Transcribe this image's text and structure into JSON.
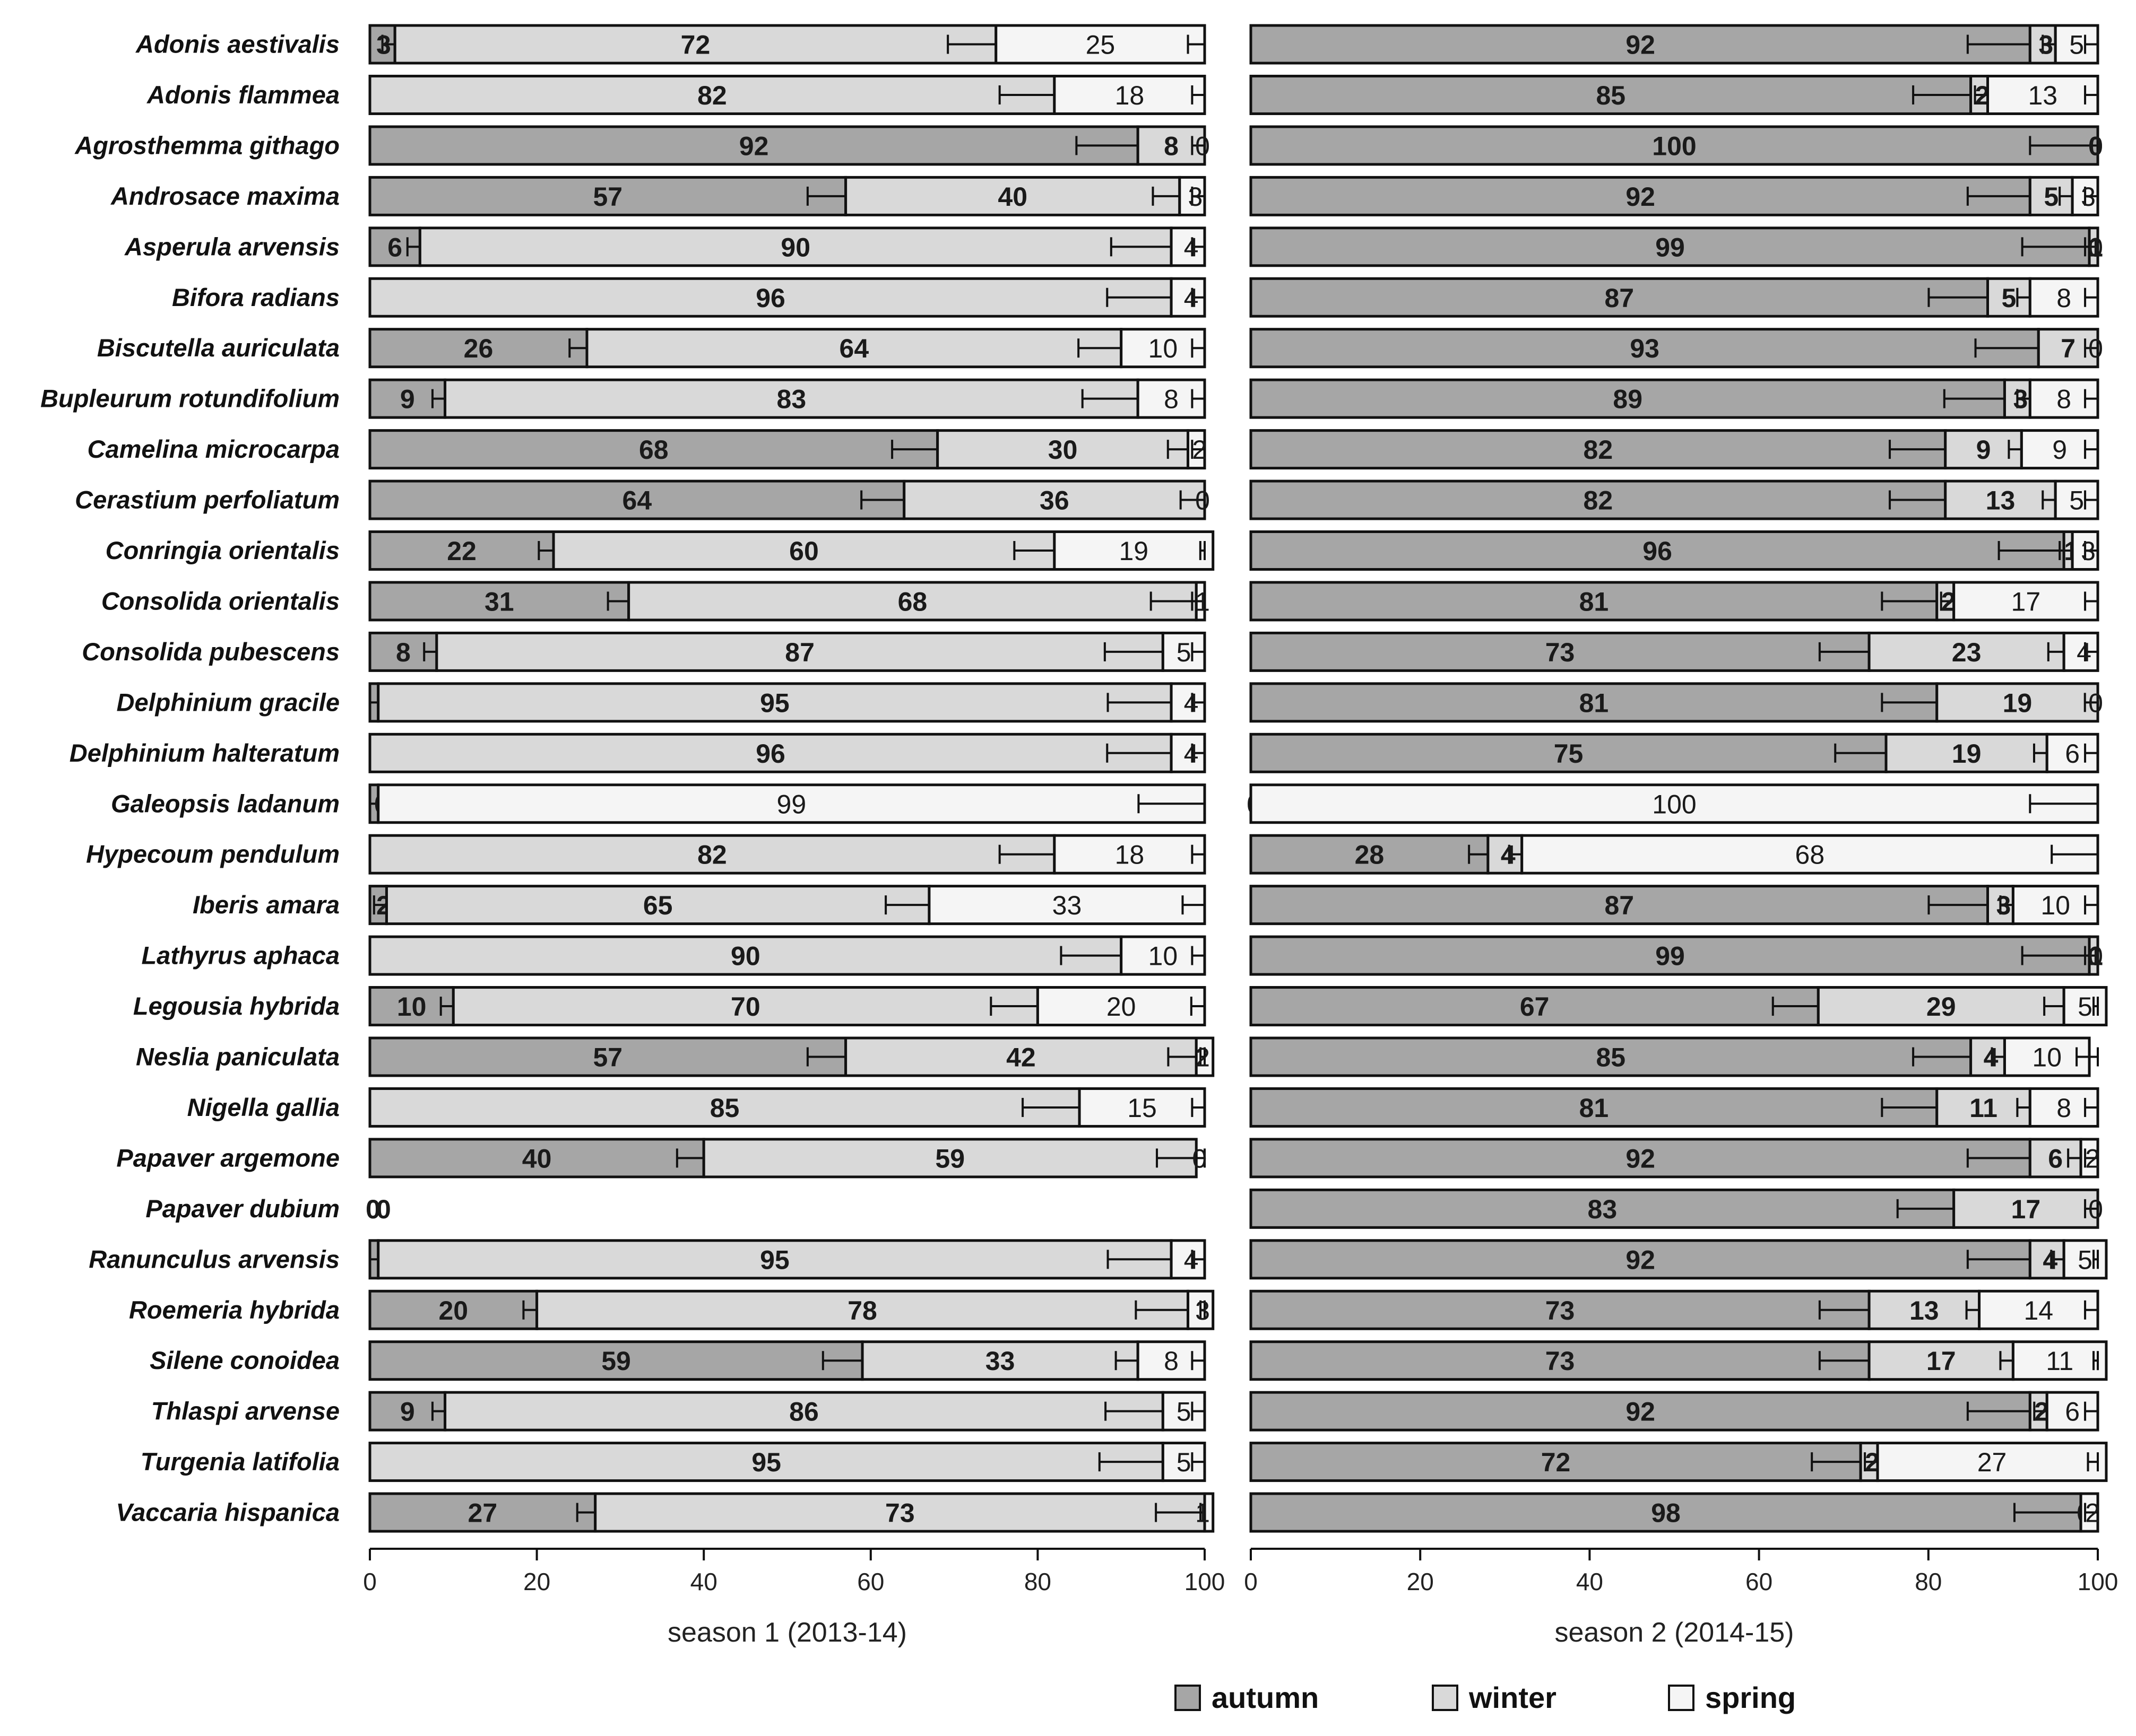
{
  "chart_data": [
    {
      "type": "bar",
      "orientation": "horizontal",
      "stacked": true,
      "percent": true,
      "title": "",
      "xlabel": "season 1 (2013-14)",
      "ylabel": "",
      "xlim": [
        0,
        100
      ],
      "xticks": [
        "0",
        "20",
        "40",
        "60",
        "80",
        "100"
      ],
      "categories": [
        "Adonis aestivalis",
        "Adonis flammea",
        "Agrosthemma githago",
        "Androsace maxima",
        "Asperula arvensis",
        "Bifora radians",
        "Biscutella auriculata",
        "Bupleurum rotundifolium",
        "Camelina microcarpa",
        "Cerastium perfoliatum",
        "Conringia orientalis",
        "Consolida orientalis",
        "Consolida pubescens",
        "Delphinium gracile",
        "Delphinium halteratum",
        "Galeopsis ladanum",
        "Hypecoum pendulum",
        "Iberis amara",
        "Lathyrus aphaca",
        "Legousia hybrida",
        "Neslia paniculata",
        "Nigella gallia",
        "Papaver argemone",
        "Papaver dubium",
        "Ranunculus arvensis",
        "Roemeria hybrida",
        "Silene conoidea",
        "Thlaspi arvense",
        "Turgenia latifolia",
        "Vaccaria hispanica"
      ],
      "series": [
        {
          "name": "autumn",
          "values": [
            3,
            0,
            92,
            57,
            6,
            0,
            26,
            9,
            68,
            64,
            22,
            31,
            8,
            1,
            0,
            1,
            0,
            2,
            0,
            10,
            57,
            0,
            40,
            0,
            1,
            20,
            59,
            9,
            0,
            27
          ]
        },
        {
          "name": "winter",
          "values": [
            72,
            82,
            8,
            40,
            90,
            96,
            64,
            83,
            30,
            36,
            60,
            68,
            87,
            95,
            96,
            0,
            82,
            65,
            90,
            70,
            42,
            85,
            59,
            0,
            95,
            78,
            33,
            86,
            95,
            73
          ]
        },
        {
          "name": "spring",
          "values": [
            25,
            18,
            0,
            3,
            4,
            4,
            10,
            8,
            2,
            0,
            19,
            1,
            5,
            4,
            4,
            99,
            18,
            33,
            10,
            20,
            2,
            15,
            0,
            0,
            4,
            3,
            8,
            5,
            5,
            1
          ]
        }
      ]
    },
    {
      "type": "bar",
      "orientation": "horizontal",
      "stacked": true,
      "percent": true,
      "title": "",
      "xlabel": "season 2 (2014-15)",
      "ylabel": "",
      "xlim": [
        0,
        100
      ],
      "xticks": [
        "0",
        "20",
        "40",
        "60",
        "80",
        "100"
      ],
      "categories": [
        "Adonis aestivalis",
        "Adonis flammea",
        "Agrosthemma githago",
        "Androsace maxima",
        "Asperula arvensis",
        "Bifora radians",
        "Biscutella auriculata",
        "Bupleurum rotundifolium",
        "Camelina microcarpa",
        "Cerastium perfoliatum",
        "Conringia orientalis",
        "Consolida orientalis",
        "Consolida pubescens",
        "Delphinium gracile",
        "Delphinium halteratum",
        "Galeopsis ladanum",
        "Hypecoum pendulum",
        "Iberis amara",
        "Lathyrus aphaca",
        "Legousia hybrida",
        "Neslia paniculata",
        "Nigella gallia",
        "Papaver argemone",
        "Papaver dubium",
        "Ranunculus arvensis",
        "Roemeria hybrida",
        "Silene conoidea",
        "Thlaspi arvense",
        "Turgenia latifolia",
        "Vaccaria hispanica"
      ],
      "series": [
        {
          "name": "autumn",
          "values": [
            92,
            85,
            100,
            92,
            99,
            87,
            93,
            89,
            82,
            82,
            96,
            81,
            73,
            81,
            75,
            0,
            28,
            87,
            99,
            67,
            85,
            81,
            92,
            83,
            92,
            73,
            73,
            92,
            72,
            98
          ]
        },
        {
          "name": "winter",
          "values": [
            3,
            2,
            0,
            5,
            1,
            5,
            7,
            3,
            9,
            13,
            1,
            2,
            23,
            19,
            19,
            0,
            4,
            3,
            1,
            29,
            4,
            11,
            6,
            17,
            4,
            13,
            17,
            2,
            2,
            0
          ]
        },
        {
          "name": "spring",
          "values": [
            5,
            13,
            0,
            3,
            0,
            8,
            0,
            8,
            9,
            5,
            3,
            17,
            4,
            0,
            6,
            100,
            68,
            10,
            0,
            5,
            10,
            8,
            2,
            0,
            5,
            14,
            11,
            6,
            27,
            2
          ]
        }
      ]
    }
  ],
  "legend": {
    "placement": "bottom-right",
    "entries": [
      {
        "label": "autumn",
        "color": "#a6a6a6"
      },
      {
        "label": "winter",
        "color": "#d9d9d9"
      },
      {
        "label": "spring",
        "color": "#f5f5f5"
      }
    ]
  }
}
